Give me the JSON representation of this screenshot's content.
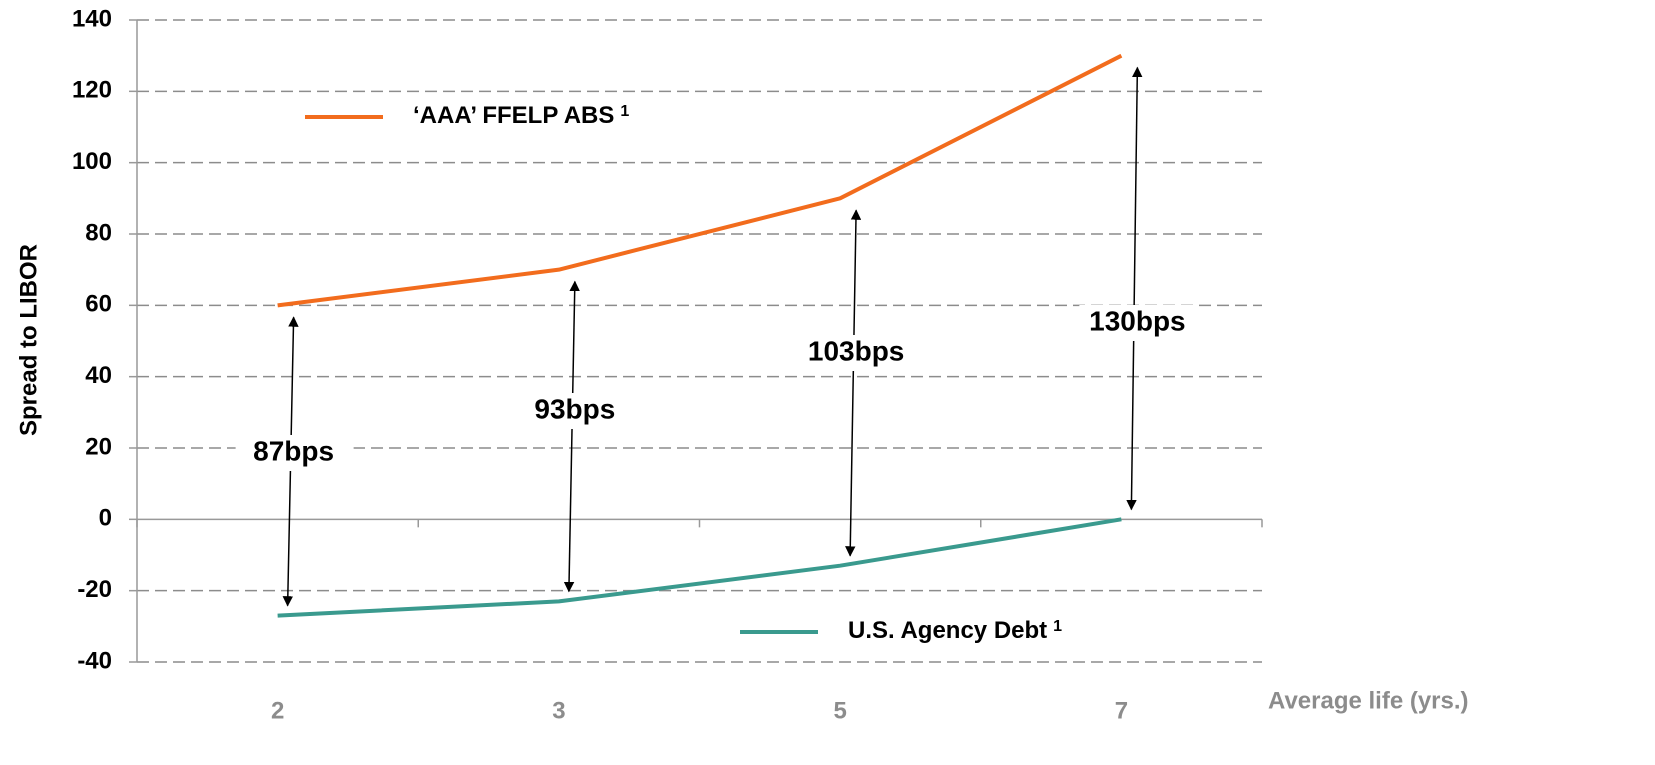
{
  "chart_data": {
    "type": "line",
    "y_label": "Spread to LIBOR",
    "x_label": "Average life (yrs.)",
    "categories": [
      "2",
      "3",
      "5",
      "7"
    ],
    "series": [
      {
        "name": "‘AAA’ FFELP ABS",
        "footnote": "1",
        "color": "#f26c1d",
        "values": [
          60,
          70,
          90,
          130
        ]
      },
      {
        "name": "U.S. Agency Debt",
        "footnote": "1",
        "color": "#3a9a8e",
        "values": [
          -27,
          -23,
          -13,
          0
        ]
      }
    ],
    "annotations": [
      "87bps",
      "93bps",
      "103bps",
      "130bps"
    ],
    "ylim": [
      -40,
      140
    ],
    "yticks": [
      -40,
      -20,
      0,
      20,
      40,
      60,
      80,
      100,
      120,
      140
    ],
    "grid": true
  }
}
